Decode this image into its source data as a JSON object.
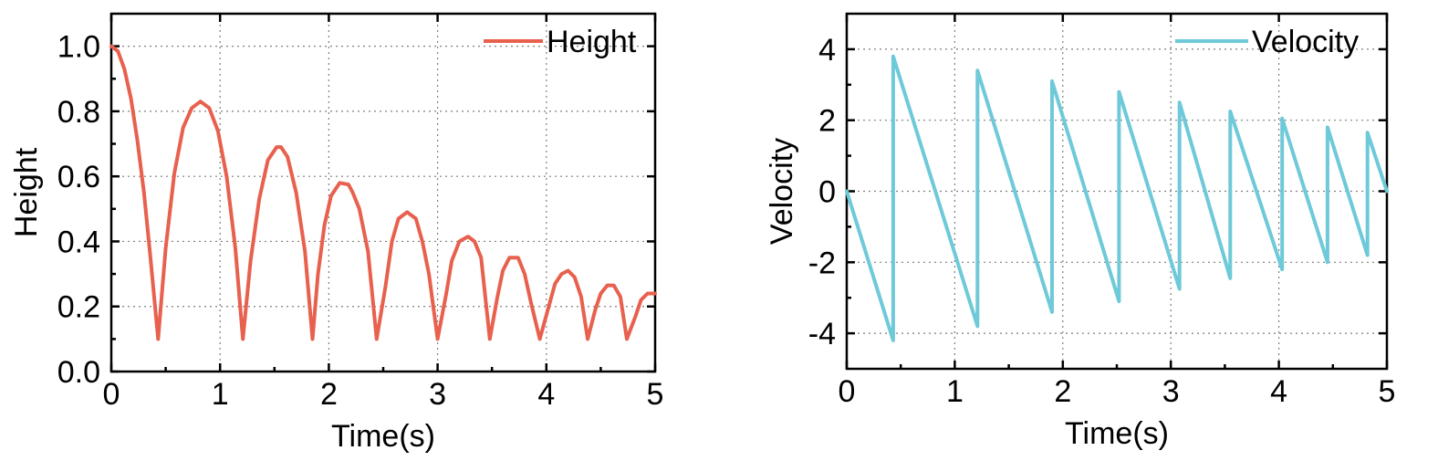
{
  "chart_data": [
    {
      "type": "line",
      "title": "",
      "xlabel": "Time(s)",
      "ylabel": "Height",
      "xlim": [
        0,
        5
      ],
      "ylim": [
        0,
        1.1
      ],
      "xticks": [
        0,
        1,
        2,
        3,
        4,
        5
      ],
      "xtick_labels": [
        "0",
        "1",
        "2",
        "3",
        "4",
        "5"
      ],
      "yticks": [
        0.0,
        0.2,
        0.4,
        0.6,
        0.8,
        1.0
      ],
      "ytick_labels": [
        "0.0",
        "0.2",
        "0.4",
        "0.6",
        "0.8",
        "1.0"
      ],
      "grid": true,
      "legend_position": "top-right",
      "series": [
        {
          "name": "Height",
          "color": "#e8604e",
          "x": [
            0.0,
            0.06,
            0.12,
            0.18,
            0.24,
            0.3,
            0.36,
            0.43,
            0.5,
            0.58,
            0.66,
            0.74,
            0.82,
            0.9,
            0.98,
            1.06,
            1.14,
            1.21,
            1.28,
            1.36,
            1.44,
            1.52,
            1.56,
            1.62,
            1.7,
            1.78,
            1.85,
            1.9,
            1.96,
            2.02,
            2.1,
            2.18,
            2.22,
            2.28,
            2.36,
            2.44,
            2.52,
            2.58,
            2.64,
            2.72,
            2.8,
            2.86,
            2.92,
            3.0,
            3.08,
            3.13,
            3.2,
            3.28,
            3.34,
            3.4,
            3.48,
            3.55,
            3.6,
            3.66,
            3.74,
            3.8,
            3.86,
            3.94,
            4.03,
            4.08,
            4.14,
            4.2,
            4.26,
            4.32,
            4.38,
            4.45,
            4.5,
            4.56,
            4.62,
            4.68,
            4.74,
            4.82,
            4.87,
            4.93,
            5.0
          ],
          "y": [
            1.0,
            0.985,
            0.93,
            0.84,
            0.71,
            0.55,
            0.35,
            0.1,
            0.38,
            0.61,
            0.75,
            0.81,
            0.83,
            0.81,
            0.74,
            0.6,
            0.38,
            0.1,
            0.34,
            0.53,
            0.65,
            0.69,
            0.69,
            0.66,
            0.55,
            0.37,
            0.1,
            0.3,
            0.45,
            0.54,
            0.58,
            0.575,
            0.55,
            0.5,
            0.37,
            0.1,
            0.26,
            0.4,
            0.47,
            0.49,
            0.47,
            0.4,
            0.3,
            0.1,
            0.24,
            0.34,
            0.4,
            0.415,
            0.4,
            0.35,
            0.1,
            0.23,
            0.31,
            0.35,
            0.35,
            0.3,
            0.21,
            0.1,
            0.21,
            0.27,
            0.3,
            0.31,
            0.29,
            0.23,
            0.1,
            0.19,
            0.24,
            0.265,
            0.265,
            0.23,
            0.1,
            0.17,
            0.22,
            0.24,
            0.24
          ]
        }
      ]
    },
    {
      "type": "line",
      "title": "",
      "xlabel": "Time(s)",
      "ylabel": "Velocity",
      "xlim": [
        0,
        5
      ],
      "ylim": [
        -5,
        5
      ],
      "xticks": [
        0,
        1,
        2,
        3,
        4,
        5
      ],
      "xtick_labels": [
        "0",
        "1",
        "2",
        "3",
        "4",
        "5"
      ],
      "yticks": [
        -4,
        -2,
        0,
        2,
        4
      ],
      "ytick_labels": [
        "-4",
        "-2",
        "0",
        "2",
        "4"
      ],
      "grid": true,
      "legend_position": "top-right",
      "series": [
        {
          "name": "Velocity",
          "color": "#6ec9d8",
          "x": [
            0.0,
            0.43,
            0.43,
            1.21,
            1.21,
            1.9,
            1.9,
            2.52,
            2.52,
            3.08,
            3.08,
            3.55,
            3.55,
            4.03,
            4.03,
            4.45,
            4.45,
            4.82,
            4.82,
            5.0
          ],
          "y": [
            0.0,
            -4.2,
            3.8,
            -3.8,
            3.4,
            -3.4,
            3.1,
            -3.1,
            2.8,
            -2.75,
            2.5,
            -2.45,
            2.25,
            -2.2,
            2.05,
            -2.0,
            1.8,
            -1.8,
            1.65,
            0.0
          ]
        }
      ]
    }
  ]
}
